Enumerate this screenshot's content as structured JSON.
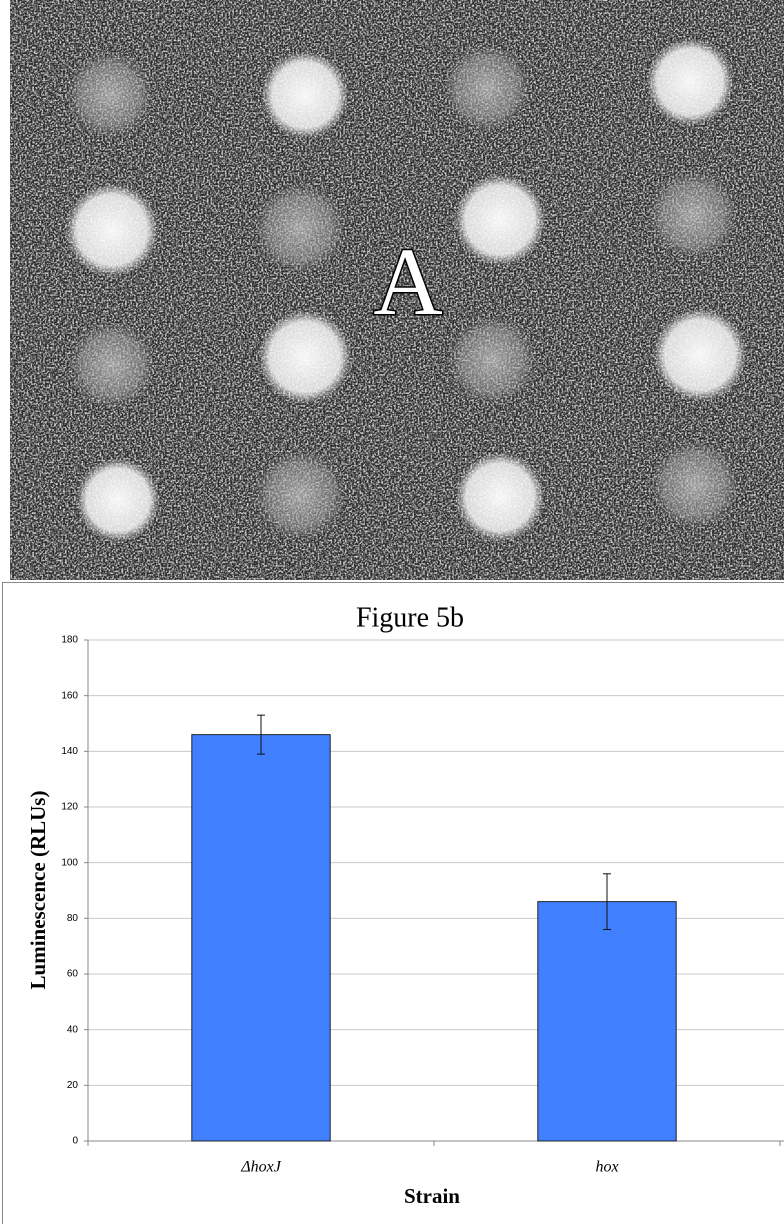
{
  "panel": {
    "label": "A"
  },
  "chart_data": {
    "type": "bar",
    "title": "Figure 5b",
    "x_label": "Strain",
    "y_label": "Luminescence (RLUs)",
    "categories": [
      "ΔhoxJ",
      "hox"
    ],
    "values": [
      146,
      86
    ],
    "errors": [
      7,
      10
    ],
    "color": "#4080ff",
    "ylim": [
      0,
      180
    ],
    "yticks": [
      0,
      20,
      40,
      60,
      80,
      100,
      120,
      140,
      160,
      180
    ],
    "grid": true
  }
}
